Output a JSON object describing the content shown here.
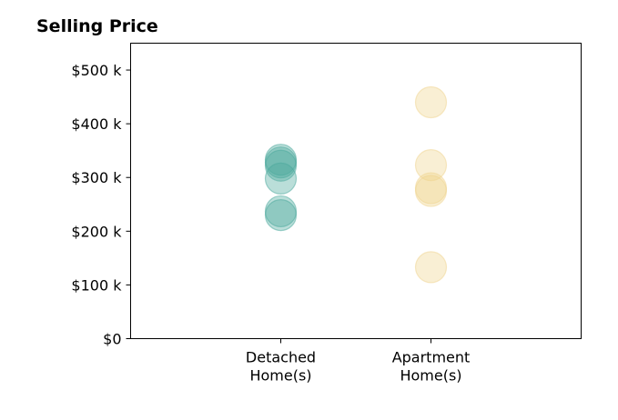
{
  "chart_data": {
    "type": "scatter",
    "title": "Selling Price",
    "categories": [
      "Detached\nHome(s)",
      "Apartment\nHome(s)"
    ],
    "y_ticks": [
      "$0",
      "$100 k",
      "$200 k",
      "$300 k",
      "$400 k",
      "$500 k"
    ],
    "y_tick_values": [
      0,
      100000,
      200000,
      300000,
      400000,
      500000
    ],
    "ylim": [
      0,
      550000
    ],
    "xlim": [
      0,
      3
    ],
    "grid": false,
    "series": [
      {
        "category_index": 0,
        "color": "#4aa89c",
        "values": [
          333000,
          328000,
          322000,
          298000,
          237000,
          230000
        ]
      },
      {
        "category_index": 1,
        "color": "#f0d48e",
        "values": [
          440000,
          323000,
          280000,
          275000,
          133000
        ]
      }
    ]
  }
}
